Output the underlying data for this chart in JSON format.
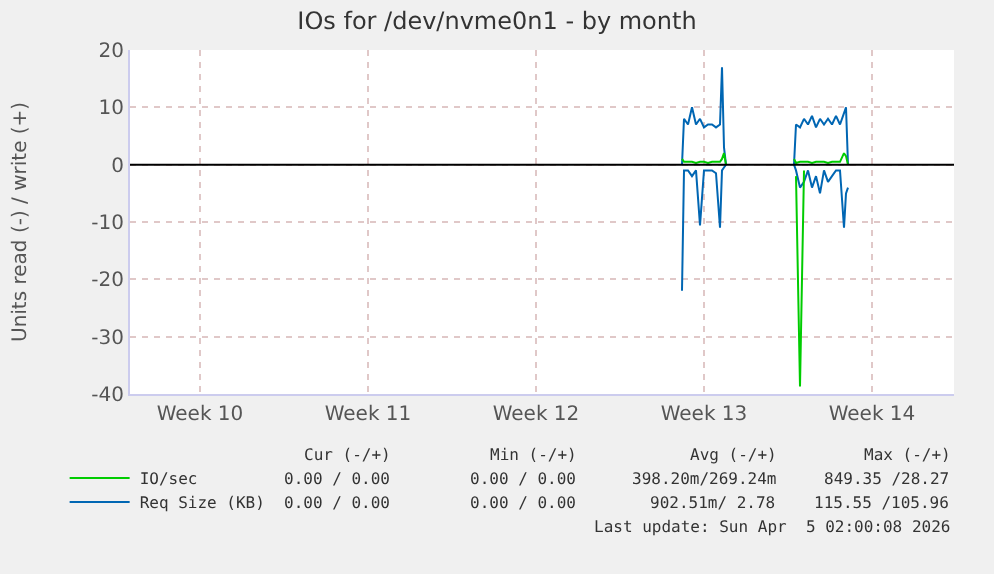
{
  "chart_data": {
    "type": "line",
    "title": "IOs for /dev/nvme0n1 - by month",
    "ylabel": "Units read (-) / write (+)",
    "xlim": [
      "2026-03-02T14:00",
      "2026-04-05T22:00"
    ],
    "xticks": [
      {
        "value": "2026-03-05T12:00",
        "label": "Week 10"
      },
      {
        "value": "2026-03-12T12:00",
        "label": "Week 11"
      },
      {
        "value": "2026-03-19T12:00",
        "label": "Week 12"
      },
      {
        "value": "2026-03-26T12:00",
        "label": "Week 13"
      },
      {
        "value": "2026-04-02T12:00",
        "label": "Week 14"
      }
    ],
    "x": [
      "2026-03-25T14:00",
      "2026-03-25T16:00",
      "2026-03-25T20:00",
      "2026-03-26T00:00",
      "2026-03-26T04:00",
      "2026-03-26T08:00",
      "2026-03-26T12:00",
      "2026-03-26T16:00",
      "2026-03-26T20:00",
      "2026-03-27T00:00",
      "2026-03-27T04:00",
      "2026-03-27T06:00",
      "2026-03-27T08:00",
      "2026-03-27T10:00",
      null,
      "2026-03-30T06:00",
      "2026-03-30T08:00",
      "2026-03-30T12:00",
      "2026-03-30T16:00",
      "2026-03-30T20:00",
      "2026-03-31T00:00",
      "2026-03-31T04:00",
      "2026-03-31T08:00",
      "2026-03-31T12:00",
      "2026-03-31T16:00",
      "2026-03-31T20:00",
      "2026-04-01T00:00",
      "2026-04-01T04:00",
      "2026-04-01T08:00",
      "2026-04-01T10:00",
      "2026-04-01T12:00"
    ],
    "ylim": [
      -40,
      20
    ],
    "yticks": [
      -40,
      -30,
      -20,
      -10,
      0,
      10,
      20
    ],
    "grid": true,
    "legend": "bottom left",
    "series": [
      {
        "name": "IO/sec",
        "color": "#00cc00",
        "values": [
          1,
          0.5,
          0.5,
          0.5,
          0.3,
          0.5,
          0.5,
          0.3,
          0.5,
          0.5,
          0.5,
          1,
          2,
          0,
          null,
          1,
          0.3,
          0.5,
          0.5,
          0.5,
          0.3,
          0.5,
          0.5,
          0.5,
          0.3,
          0.5,
          0.5,
          0.5,
          2,
          1.5,
          0
        ]
      },
      {
        "color": "#00cc00",
        "values": [
          null,
          null,
          null,
          null,
          null,
          null,
          null,
          null,
          null,
          null,
          null,
          null,
          null,
          null,
          null,
          null,
          -2,
          -38.7,
          -1,
          null,
          null,
          null,
          null,
          null,
          null,
          null,
          null,
          null,
          null,
          null,
          null
        ]
      },
      {
        "name": "Req Size (KB)",
        "color": "#0066b3",
        "values": [
          0,
          8,
          7,
          10,
          7,
          8,
          6.5,
          7,
          7,
          6.5,
          7,
          17,
          3,
          0,
          null,
          0,
          7,
          6.5,
          8,
          7,
          8.5,
          6.5,
          8,
          7,
          8,
          7,
          8.5,
          7,
          9,
          10,
          0
        ]
      },
      {
        "color": "#0066b3",
        "values": [
          -22,
          -1,
          -1,
          -2,
          -1,
          -10.6,
          -1,
          -1,
          -1,
          -1.5,
          -11,
          -1,
          -0.5,
          0,
          null,
          0,
          -1,
          -4,
          -3,
          -1,
          -4,
          -2,
          -5,
          -1,
          -3,
          -2,
          -1,
          -1,
          -11,
          -5,
          -4
        ]
      }
    ],
    "ref_lines": [
      {
        "axis": "y",
        "value": 0,
        "color": "#000000"
      }
    ],
    "annotations": [
      "Cur (-/+)",
      "Min (-/+)",
      "Avg (-/+)",
      "Max (-/+)",
      "0.00 / 0.00",
      "0.00 / 0.00",
      "398.20m/269.24m",
      "849.35 /28.27",
      "0.00 / 0.00",
      "0.00 / 0.00",
      "902.51m/ 2.78",
      "115.55 /105.96",
      "Last update: Sun Apr  5 02:00:08 2026"
    ]
  }
}
